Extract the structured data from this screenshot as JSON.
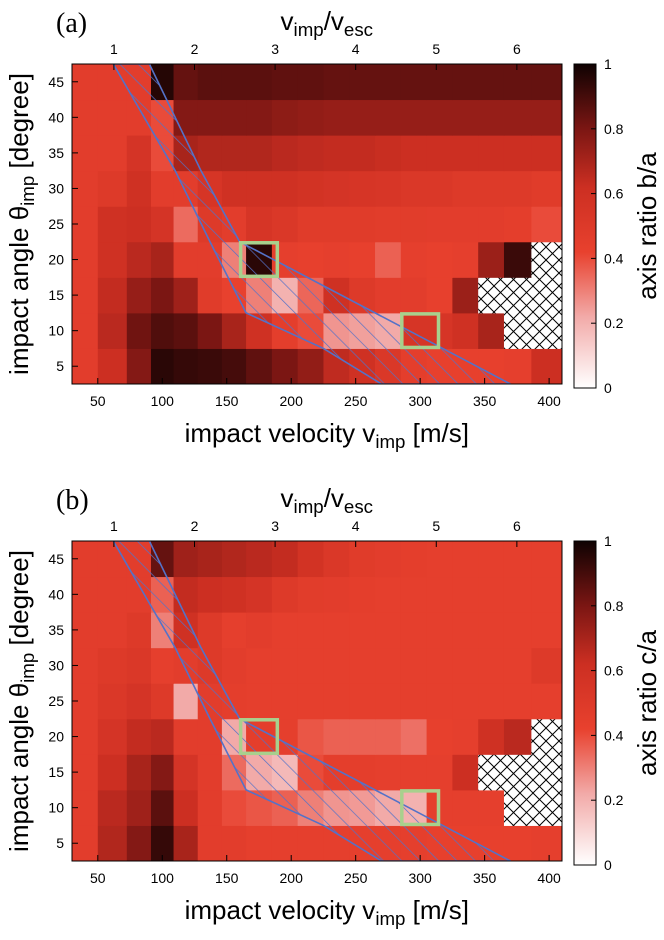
{
  "chart_data": [
    {
      "type": "heatmap",
      "panel": "(a)",
      "xlabel": "impact velocity v",
      "xlabel_sub": "imp",
      "xlabel_unit": " [m/s]",
      "top_label_num": "v",
      "top_label_num_sub": "imp",
      "top_label_den": "v",
      "top_label_den_sub": "esc",
      "top_label_sep": "/",
      "ylabel": "impact angle θ",
      "ylabel_sub": "imp",
      "ylabel_unit": " [degree]",
      "colorbar_label": "axis ratio b/a",
      "xlim": [
        30,
        410
      ],
      "ylim": [
        2.5,
        47.5
      ],
      "xticks": [
        50,
        100,
        150,
        200,
        250,
        300,
        350,
        400
      ],
      "yticks": [
        5,
        10,
        15,
        20,
        25,
        30,
        35,
        40,
        45
      ],
      "top_ticks": [
        1,
        2,
        3,
        4,
        5,
        6
      ],
      "top_tick_velocities": [
        62.5,
        125,
        187.5,
        250,
        312.5,
        375
      ],
      "colorbar_ticks": [
        0,
        0.2,
        0.4,
        0.6,
        0.8,
        1
      ],
      "colorbar_range": [
        0,
        1
      ],
      "x": [
        37.5,
        62.5,
        82.5,
        100,
        117.5,
        137.5,
        155,
        175,
        195,
        215,
        235,
        255,
        275,
        295,
        315,
        335,
        355,
        375,
        397.5
      ],
      "y": [
        5,
        10,
        15,
        20,
        25,
        30,
        35,
        40,
        45
      ],
      "values": [
        [
          0.46,
          0.62,
          0.78,
          0.95,
          0.93,
          0.92,
          0.9,
          0.85,
          0.8,
          0.75,
          0.65,
          0.6,
          0.52,
          0.45,
          0.43,
          0.43,
          0.43,
          0.44,
          0.62
        ],
        [
          0.46,
          0.66,
          0.82,
          0.88,
          0.86,
          0.8,
          0.7,
          0.6,
          0.45,
          0.4,
          0.26,
          0.24,
          0.22,
          0.55,
          0.55,
          0.6,
          0.7,
          null,
          null
        ],
        [
          0.46,
          0.64,
          0.74,
          0.8,
          0.72,
          0.48,
          0.42,
          0.3,
          0.2,
          0.35,
          0.6,
          0.5,
          0.46,
          0.46,
          0.43,
          0.73,
          null,
          null,
          null
        ],
        [
          0.46,
          0.6,
          0.66,
          0.7,
          0.46,
          0.46,
          0.3,
          0.95,
          0.44,
          0.43,
          0.44,
          0.43,
          0.36,
          0.44,
          0.43,
          0.44,
          0.73,
          0.92,
          null
        ],
        [
          0.46,
          0.6,
          0.62,
          0.56,
          0.34,
          0.5,
          0.46,
          0.55,
          0.52,
          0.48,
          0.48,
          0.48,
          0.47,
          0.47,
          0.46,
          0.46,
          0.46,
          0.45,
          0.4
        ],
        [
          0.46,
          0.5,
          0.6,
          0.46,
          0.46,
          0.55,
          0.6,
          0.6,
          0.6,
          0.58,
          0.56,
          0.55,
          0.54,
          0.52,
          0.52,
          0.5,
          0.5,
          0.5,
          0.48
        ],
        [
          0.46,
          0.46,
          0.56,
          0.4,
          0.7,
          0.68,
          0.68,
          0.68,
          0.66,
          0.65,
          0.64,
          0.64,
          0.63,
          0.62,
          0.62,
          0.62,
          0.62,
          0.62,
          0.62
        ],
        [
          0.46,
          0.46,
          0.46,
          0.4,
          0.78,
          0.78,
          0.78,
          0.78,
          0.76,
          0.75,
          0.74,
          0.74,
          0.74,
          0.74,
          0.74,
          0.74,
          0.74,
          0.74,
          0.74
        ],
        [
          0.46,
          0.46,
          0.46,
          0.96,
          0.84,
          0.86,
          0.86,
          0.86,
          0.85,
          0.85,
          0.84,
          0.84,
          0.84,
          0.84,
          0.84,
          0.84,
          0.84,
          0.84,
          0.84
        ]
      ],
      "highlight_boxes": [
        [
          175,
          20
        ],
        [
          300,
          10
        ]
      ],
      "hatched_band": [
        [
          62,
          47.5
        ],
        [
          90,
          47.5
        ],
        [
          130,
          32.5
        ],
        [
          160,
          22.5
        ],
        [
          265,
          12.5
        ],
        [
          370,
          2.5
        ],
        [
          270,
          2.5
        ],
        [
          225,
          7.5
        ],
        [
          165,
          12.5
        ],
        [
          137,
          22.5
        ],
        [
          110,
          32.5
        ]
      ]
    },
    {
      "type": "heatmap",
      "panel": "(b)",
      "xlabel": "impact velocity v",
      "xlabel_sub": "imp",
      "xlabel_unit": " [m/s]",
      "top_label_num": "v",
      "top_label_num_sub": "imp",
      "top_label_den": "v",
      "top_label_den_sub": "esc",
      "top_label_sep": "/",
      "ylabel": "impact angle θ",
      "ylabel_sub": "imp",
      "ylabel_unit": " [degree]",
      "colorbar_label": "axis ratio c/a",
      "xlim": [
        30,
        410
      ],
      "ylim": [
        2.5,
        47.5
      ],
      "xticks": [
        50,
        100,
        150,
        200,
        250,
        300,
        350,
        400
      ],
      "yticks": [
        5,
        10,
        15,
        20,
        25,
        30,
        35,
        40,
        45
      ],
      "top_ticks": [
        1,
        2,
        3,
        4,
        5,
        6
      ],
      "top_tick_velocities": [
        62.5,
        125,
        187.5,
        250,
        312.5,
        375
      ],
      "colorbar_ticks": [
        0,
        0.2,
        0.4,
        0.6,
        0.8,
        1
      ],
      "colorbar_range": [
        0,
        1
      ],
      "x": [
        37.5,
        62.5,
        82.5,
        100,
        117.5,
        137.5,
        155,
        175,
        195,
        215,
        235,
        255,
        275,
        295,
        315,
        335,
        355,
        375,
        397.5
      ],
      "y": [
        5,
        10,
        15,
        20,
        25,
        30,
        35,
        40,
        45
      ],
      "values": [
        [
          0.46,
          0.68,
          0.78,
          0.93,
          0.7,
          0.46,
          0.46,
          0.44,
          0.44,
          0.44,
          0.44,
          0.44,
          0.44,
          0.44,
          0.43,
          0.43,
          0.43,
          0.43,
          0.44
        ],
        [
          0.46,
          0.66,
          0.72,
          0.86,
          0.62,
          0.46,
          0.4,
          0.38,
          0.36,
          0.3,
          0.26,
          0.25,
          0.22,
          0.2,
          0.44,
          0.44,
          0.44,
          null,
          null
        ],
        [
          0.46,
          0.62,
          0.7,
          0.78,
          0.56,
          0.46,
          0.34,
          0.22,
          0.18,
          0.4,
          0.45,
          0.45,
          0.44,
          0.44,
          0.44,
          0.62,
          null,
          null,
          null
        ],
        [
          0.46,
          0.56,
          0.64,
          0.66,
          0.46,
          0.46,
          0.22,
          0.45,
          0.44,
          0.38,
          0.36,
          0.36,
          0.36,
          0.33,
          0.43,
          0.44,
          0.6,
          0.66,
          null
        ],
        [
          0.46,
          0.52,
          0.56,
          0.5,
          0.22,
          0.46,
          0.45,
          0.44,
          0.44,
          0.44,
          0.44,
          0.44,
          0.44,
          0.44,
          0.44,
          0.44,
          0.44,
          0.44,
          0.44
        ],
        [
          0.46,
          0.5,
          0.52,
          0.44,
          0.46,
          0.5,
          0.46,
          0.44,
          0.44,
          0.44,
          0.44,
          0.44,
          0.44,
          0.44,
          0.44,
          0.44,
          0.44,
          0.44,
          0.5
        ],
        [
          0.46,
          0.46,
          0.5,
          0.3,
          0.6,
          0.5,
          0.44,
          0.46,
          0.44,
          0.44,
          0.44,
          0.44,
          0.44,
          0.44,
          0.44,
          0.44,
          0.44,
          0.44,
          0.44
        ],
        [
          0.46,
          0.46,
          0.46,
          0.36,
          0.64,
          0.62,
          0.6,
          0.56,
          0.5,
          0.47,
          0.46,
          0.45,
          0.44,
          0.44,
          0.44,
          0.44,
          0.44,
          0.44,
          0.44
        ],
        [
          0.46,
          0.46,
          0.46,
          0.84,
          0.72,
          0.7,
          0.68,
          0.66,
          0.64,
          0.58,
          0.52,
          0.48,
          0.46,
          0.45,
          0.44,
          0.44,
          0.44,
          0.44,
          0.44
        ]
      ],
      "highlight_boxes": [
        [
          175,
          20
        ],
        [
          300,
          10
        ]
      ],
      "hatched_band": [
        [
          62,
          47.5
        ],
        [
          90,
          47.5
        ],
        [
          130,
          32.5
        ],
        [
          160,
          22.5
        ],
        [
          265,
          12.5
        ],
        [
          370,
          2.5
        ],
        [
          270,
          2.5
        ],
        [
          225,
          7.5
        ],
        [
          165,
          12.5
        ],
        [
          137,
          22.5
        ],
        [
          110,
          32.5
        ]
      ]
    }
  ]
}
